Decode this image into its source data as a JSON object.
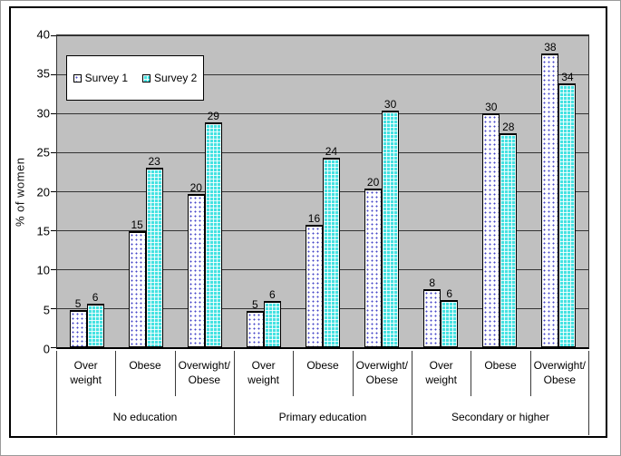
{
  "chart": {
    "ylabel": "% of women",
    "ymax": 40,
    "yticks": [
      "40",
      "35",
      "30",
      "25",
      "20",
      "15",
      "10",
      "5",
      "0"
    ],
    "plot_bg": "#c0c0c0",
    "grid_color": "#333333",
    "series1_fill": "#ffffff",
    "series1_dot_color": "#4646c8",
    "series2_fill": "#45e2e2",
    "legend": {
      "items": [
        {
          "label": "Survey 1",
          "swatch": "white-dotted"
        },
        {
          "label": "Survey 2",
          "swatch": "cyan-crosshatch"
        }
      ]
    },
    "cats": [
      {
        "l1": "Over",
        "l2": "weight"
      },
      {
        "l1": "Obese",
        "l2": ""
      },
      {
        "l1": "Overwight/",
        "l2": "Obese"
      },
      {
        "l1": "Over",
        "l2": "weight"
      },
      {
        "l1": "Obese",
        "l2": ""
      },
      {
        "l1": "Overwight/",
        "l2": "Obese"
      },
      {
        "l1": "Over",
        "l2": "weight"
      },
      {
        "l1": "Obese",
        "l2": ""
      },
      {
        "l1": "Overwight/",
        "l2": "Obese"
      }
    ],
    "groups": [
      {
        "label": "No education"
      },
      {
        "label": "Primary education"
      },
      {
        "label": "Secondary or higher"
      }
    ],
    "bars": [
      {
        "s1_label": "5",
        "s1_value": 4.8,
        "s2_label": "6",
        "s2_value": 5.6
      },
      {
        "s1_label": "15",
        "s1_value": 14.9,
        "s2_label": "23",
        "s2_value": 23.0
      },
      {
        "s1_label": "20",
        "s1_value": 19.7,
        "s2_label": "29",
        "s2_value": 28.8
      },
      {
        "s1_label": "5",
        "s1_value": 4.6,
        "s2_label": "6",
        "s2_value": 5.9
      },
      {
        "s1_label": "16",
        "s1_value": 15.7,
        "s2_label": "24",
        "s2_value": 24.3
      },
      {
        "s1_label": "20",
        "s1_value": 20.4,
        "s2_label": "30",
        "s2_value": 30.3
      },
      {
        "s1_label": "8",
        "s1_value": 7.5,
        "s2_label": "6",
        "s2_value": 6.0
      },
      {
        "s1_label": "30",
        "s1_value": 30.0,
        "s2_label": "28",
        "s2_value": 27.5
      },
      {
        "s1_label": "38",
        "s1_value": 37.7,
        "s2_label": "34",
        "s2_value": 33.8
      }
    ]
  },
  "chart_data": {
    "type": "bar",
    "title": "",
    "xlabel": "",
    "ylabel": "% of women",
    "ylim": [
      0,
      40
    ],
    "ytick_step": 5,
    "grid": true,
    "plot_background": "#c0c0c0",
    "legend_position": "inside-top-left",
    "group_labels": [
      "No education",
      "Primary education",
      "Secondary or higher"
    ],
    "categories": [
      "Over weight",
      "Obese",
      "Overwight/Obese",
      "Over weight",
      "Obese",
      "Overwight/Obese",
      "Over weight",
      "Obese",
      "Overwight/Obese"
    ],
    "series": [
      {
        "name": "Survey 1",
        "style": "white with blue dots",
        "values": [
          5,
          15,
          20,
          5,
          16,
          20,
          8,
          30,
          38
        ]
      },
      {
        "name": "Survey 2",
        "style": "cyan crosshatch",
        "values": [
          6,
          23,
          29,
          6,
          24,
          30,
          6,
          28,
          34
        ]
      }
    ],
    "data_labels": true
  }
}
